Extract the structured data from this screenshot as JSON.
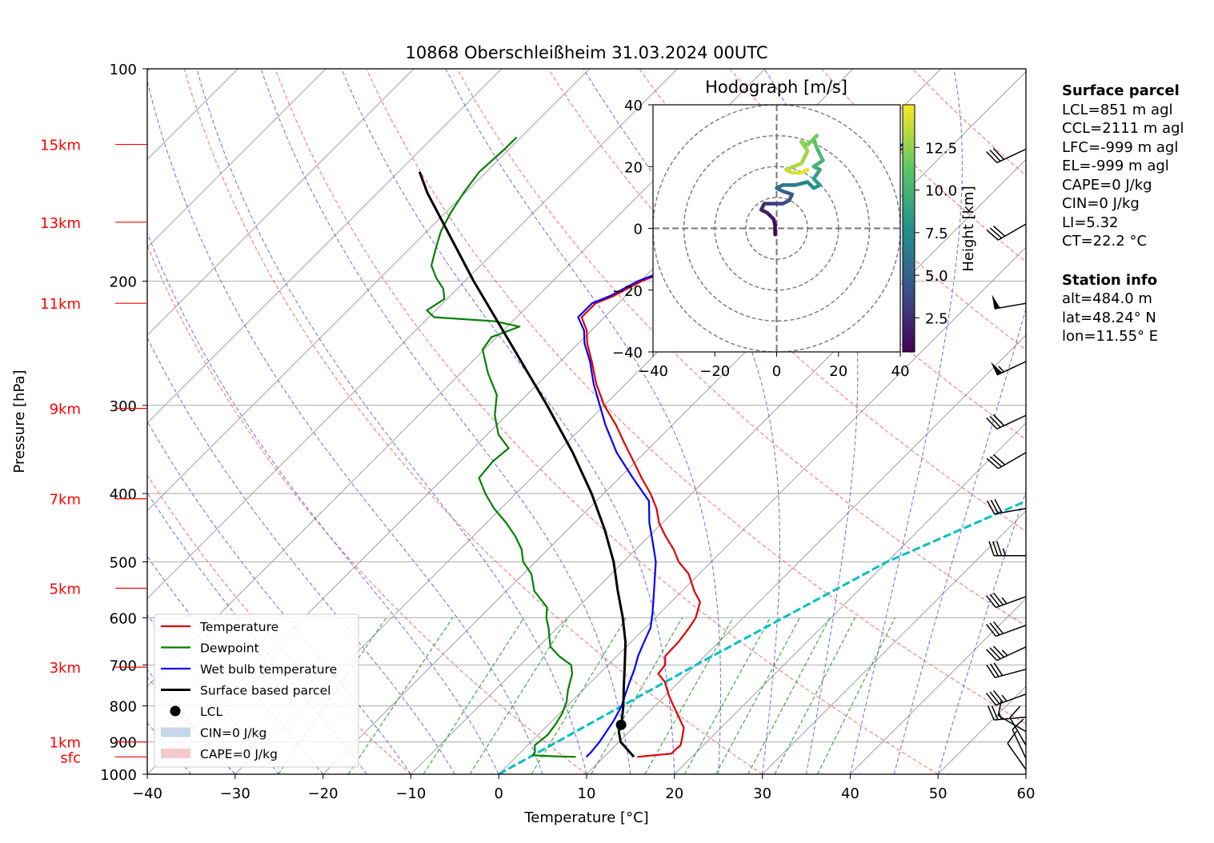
{
  "chart_data": {
    "type": "line",
    "title": "10868 Oberschleißheim 31.03.2024 00UTC",
    "xlabel": "Temperature [°C]",
    "ylabel": "Pressure [hPa]",
    "xlim": [
      -40,
      60
    ],
    "ylim": [
      1000,
      100
    ],
    "y_scale": "log",
    "x_ticks": [
      -40,
      -30,
      -20,
      -10,
      0,
      10,
      20,
      30,
      40,
      50,
      60
    ],
    "y_ticks": [
      100,
      200,
      300,
      400,
      500,
      600,
      700,
      800,
      900,
      1000
    ],
    "height_labels": [
      {
        "label": "15km",
        "p": 128
      },
      {
        "label": "13km",
        "p": 165
      },
      {
        "label": "11km",
        "p": 215
      },
      {
        "label": "9km",
        "p": 303
      },
      {
        "label": "7km",
        "p": 407
      },
      {
        "label": "5km",
        "p": 545
      },
      {
        "label": "3km",
        "p": 705
      },
      {
        "label": "1km",
        "p": 900
      },
      {
        "label": "sfc",
        "p": 945
      }
    ],
    "grid": true,
    "legend_position": "lower-left",
    "legend": [
      {
        "label": "Temperature",
        "color": "#e00000",
        "kind": "line"
      },
      {
        "label": "Dewpoint",
        "color": "#008000",
        "kind": "line"
      },
      {
        "label": "Wet bulb temperature",
        "color": "#0000ff",
        "kind": "line"
      },
      {
        "label": "Surface based parcel",
        "color": "#000000",
        "kind": "thickline"
      },
      {
        "label": "LCL",
        "color": "#000000",
        "kind": "dot"
      },
      {
        "label": "CIN=0 J/kg",
        "color": "#c6d8e8",
        "kind": "patch"
      },
      {
        "label": "CAPE=0 J/kg",
        "color": "#f5c9cb",
        "kind": "patch"
      }
    ],
    "series": [
      {
        "name": "Temperature",
        "color": "#e00000",
        "points": [
          [
            945,
            13.8
          ],
          [
            940,
            15.5
          ],
          [
            935,
            17.3
          ],
          [
            925,
            17.3
          ],
          [
            910,
            17.4
          ],
          [
            890,
            16.8
          ],
          [
            860,
            15.8
          ],
          [
            840,
            14.6
          ],
          [
            820,
            13.4
          ],
          [
            800,
            12.1
          ],
          [
            770,
            10.2
          ],
          [
            740,
            8.4
          ],
          [
            720,
            6.7
          ],
          [
            700,
            6.5
          ],
          [
            680,
            5.5
          ],
          [
            650,
            5.4
          ],
          [
            620,
            5.0
          ],
          [
            600,
            4.6
          ],
          [
            570,
            3.3
          ],
          [
            550,
            1.4
          ],
          [
            520,
            -1.2
          ],
          [
            500,
            -3.7
          ],
          [
            480,
            -5.7
          ],
          [
            460,
            -8.1
          ],
          [
            440,
            -10.4
          ],
          [
            420,
            -12.3
          ],
          [
            400,
            -14.7
          ],
          [
            380,
            -17.5
          ],
          [
            360,
            -20.3
          ],
          [
            340,
            -23.3
          ],
          [
            320,
            -26.4
          ],
          [
            300,
            -30.0
          ],
          [
            280,
            -33.3
          ],
          [
            260,
            -36.4
          ],
          [
            245,
            -39.0
          ],
          [
            235,
            -40.5
          ],
          [
            225,
            -42.6
          ],
          [
            215,
            -42.6
          ],
          [
            210,
            -41.4
          ],
          [
            200,
            -39.9
          ],
          [
            195,
            -38.5
          ],
          [
            190,
            -37.9
          ],
          [
            185,
            -36.0
          ],
          [
            180,
            -33.0
          ],
          [
            175,
            -31.5
          ],
          [
            170,
            -31.7
          ],
          [
            160,
            -31.9
          ],
          [
            150,
            -32.5
          ],
          [
            145,
            -31.5
          ],
          [
            140,
            -29.5
          ],
          [
            135,
            -26.2
          ],
          [
            130,
            -25.3
          ],
          [
            125,
            -25.3
          ]
        ]
      },
      {
        "name": "Dewpoint",
        "color": "#008000",
        "points": [
          [
            945,
            6.8
          ],
          [
            943,
            4.0
          ],
          [
            940,
            1.7
          ],
          [
            930,
            1.6
          ],
          [
            910,
            0.8
          ],
          [
            880,
            1.1
          ],
          [
            850,
            0.8
          ],
          [
            820,
            0.3
          ],
          [
            790,
            -0.5
          ],
          [
            760,
            -1.7
          ],
          [
            720,
            -3.1
          ],
          [
            700,
            -4.2
          ],
          [
            680,
            -6.6
          ],
          [
            660,
            -8.6
          ],
          [
            640,
            -9.8
          ],
          [
            620,
            -11.0
          ],
          [
            600,
            -12.4
          ],
          [
            580,
            -13.5
          ],
          [
            550,
            -16.8
          ],
          [
            520,
            -19.1
          ],
          [
            500,
            -21.4
          ],
          [
            480,
            -23.0
          ],
          [
            460,
            -25.2
          ],
          [
            440,
            -27.8
          ],
          [
            420,
            -30.8
          ],
          [
            400,
            -33.5
          ],
          [
            380,
            -36.0
          ],
          [
            360,
            -36.3
          ],
          [
            345,
            -36.0
          ],
          [
            330,
            -38.7
          ],
          [
            310,
            -41.3
          ],
          [
            290,
            -43.4
          ],
          [
            270,
            -46.9
          ],
          [
            250,
            -50.2
          ],
          [
            240,
            -50.6
          ],
          [
            232,
            -48.6
          ],
          [
            228,
            -52.0
          ],
          [
            225,
            -59.4
          ],
          [
            220,
            -61.0
          ],
          [
            212,
            -60.3
          ],
          [
            205,
            -61.6
          ],
          [
            198,
            -63.6
          ],
          [
            190,
            -65.6
          ],
          [
            180,
            -67.0
          ],
          [
            170,
            -68.4
          ],
          [
            160,
            -69.4
          ],
          [
            150,
            -70.2
          ],
          [
            140,
            -70.8
          ],
          [
            130,
            -70.5
          ],
          [
            125,
            -70.5
          ]
        ]
      },
      {
        "name": "Wet bulb temperature",
        "color": "#0000ff",
        "points": [
          [
            945,
            8.0
          ],
          [
            930,
            8.0
          ],
          [
            900,
            7.8
          ],
          [
            870,
            7.4
          ],
          [
            840,
            7.0
          ],
          [
            800,
            6.2
          ],
          [
            770,
            5.3
          ],
          [
            740,
            4.4
          ],
          [
            710,
            3.5
          ],
          [
            680,
            2.4
          ],
          [
            650,
            1.5
          ],
          [
            620,
            0.6
          ],
          [
            590,
            -0.9
          ],
          [
            560,
            -2.6
          ],
          [
            530,
            -4.4
          ],
          [
            500,
            -6.3
          ],
          [
            470,
            -8.8
          ],
          [
            440,
            -11.5
          ],
          [
            410,
            -14.0
          ],
          [
            380,
            -18.5
          ],
          [
            350,
            -23.2
          ],
          [
            320,
            -27.6
          ],
          [
            300,
            -30.5
          ],
          [
            280,
            -33.6
          ],
          [
            260,
            -36.6
          ],
          [
            245,
            -39.3
          ],
          [
            235,
            -40.8
          ],
          [
            225,
            -43.0
          ],
          [
            215,
            -43.0
          ],
          [
            210,
            -41.8
          ],
          [
            200,
            -40.3
          ],
          [
            195,
            -38.9
          ],
          [
            190,
            -38.3
          ],
          [
            185,
            -36.4
          ],
          [
            180,
            -33.5
          ],
          [
            175,
            -32.0
          ],
          [
            170,
            -32.2
          ],
          [
            160,
            -32.4
          ],
          [
            150,
            -33.0
          ],
          [
            145,
            -32.0
          ],
          [
            140,
            -30.0
          ],
          [
            135,
            -26.7
          ],
          [
            130,
            -25.8
          ],
          [
            125,
            -25.8
          ]
        ]
      },
      {
        "name": "Surface based parcel",
        "color": "#000000",
        "points": [
          [
            945,
            13.4
          ],
          [
            900,
            10.2
          ],
          [
            870,
            8.8
          ],
          [
            850,
            8.3
          ],
          [
            800,
            6.4
          ],
          [
            750,
            4.2
          ],
          [
            700,
            1.9
          ],
          [
            650,
            -0.6
          ],
          [
            600,
            -3.7
          ],
          [
            550,
            -7.3
          ],
          [
            500,
            -11.1
          ],
          [
            450,
            -15.8
          ],
          [
            400,
            -21.4
          ],
          [
            350,
            -28.2
          ],
          [
            300,
            -36.5
          ],
          [
            250,
            -46.6
          ],
          [
            200,
            -59.0
          ],
          [
            150,
            -74.3
          ],
          [
            140,
            -77.6
          ]
        ]
      }
    ],
    "lcl": {
      "pressure": 851,
      "temperature": 8.3
    },
    "reference_line": {
      "color": "#00c0c0",
      "points": [
        [
          1000,
          0
        ],
        [
          700,
          10
        ],
        [
          500,
          20
        ],
        [
          400,
          30
        ],
        [
          300,
          50
        ]
      ]
    },
    "wind_barbs": [
      {
        "p": 130,
        "dir": 245,
        "speed": 30
      },
      {
        "p": 166,
        "dir": 240,
        "speed": 30
      },
      {
        "p": 215,
        "dir": 260,
        "speed": 50
      },
      {
        "p": 260,
        "dir": 245,
        "speed": 55
      },
      {
        "p": 310,
        "dir": 245,
        "speed": 30
      },
      {
        "p": 350,
        "dir": 240,
        "speed": 30
      },
      {
        "p": 420,
        "dir": 260,
        "speed": 30
      },
      {
        "p": 490,
        "dir": 270,
        "speed": 35
      },
      {
        "p": 560,
        "dir": 250,
        "speed": 35
      },
      {
        "p": 615,
        "dir": 250,
        "speed": 30
      },
      {
        "p": 660,
        "dir": 245,
        "speed": 35
      },
      {
        "p": 710,
        "dir": 255,
        "speed": 30
      },
      {
        "p": 770,
        "dir": 250,
        "speed": 35
      },
      {
        "p": 830,
        "dir": 265,
        "speed": 25
      },
      {
        "p": 870,
        "dir": 300,
        "speed": 10
      },
      {
        "p": 910,
        "dir": 330,
        "speed": 10
      },
      {
        "p": 950,
        "dir": 335,
        "speed": 10
      },
      {
        "p": 985,
        "dir": 325,
        "speed": 10
      }
    ],
    "hodograph": {
      "title": "Hodograph [m/s]",
      "xlim": [
        -40,
        40
      ],
      "ylim": [
        -40,
        40
      ],
      "ticks": [
        -40,
        -20,
        0,
        20,
        40
      ],
      "rings": [
        10,
        20,
        30,
        40
      ],
      "colorbar_label": "Height [km]",
      "colorbar_ticks": [
        2.5,
        5.0,
        7.5,
        10.0,
        12.5
      ],
      "colorbar_range": [
        0.5,
        15
      ],
      "points": [
        [
          -0.5,
          -2,
          0.5
        ],
        [
          -0.5,
          1,
          0.8
        ],
        [
          -1,
          3,
          1.1
        ],
        [
          -3,
          5,
          1.5
        ],
        [
          -5,
          6,
          2.0
        ],
        [
          -4,
          8,
          2.4
        ],
        [
          -2,
          8,
          2.8
        ],
        [
          0,
          8,
          3.2
        ],
        [
          2,
          8,
          3.6
        ],
        [
          4,
          9,
          4.0
        ],
        [
          5,
          11,
          4.5
        ],
        [
          2,
          12,
          5.0
        ],
        [
          0,
          13,
          5.5
        ],
        [
          2,
          14,
          6.0
        ],
        [
          6,
          14,
          6.5
        ],
        [
          10,
          15,
          7.0
        ],
        [
          12,
          13,
          7.5
        ],
        [
          14,
          14,
          8.0
        ],
        [
          12,
          16,
          8.5
        ],
        [
          14,
          19,
          9.0
        ],
        [
          12,
          20,
          9.5
        ],
        [
          15,
          22,
          10.0
        ],
        [
          13,
          26,
          10.6
        ],
        [
          12,
          29,
          11.2
        ],
        [
          13,
          30,
          11.6
        ],
        [
          10,
          27,
          12.0
        ],
        [
          8,
          28,
          12.3
        ],
        [
          10,
          25,
          12.7
        ],
        [
          8,
          21,
          13.0
        ],
        [
          3,
          19,
          13.5
        ],
        [
          5,
          18,
          14.0
        ],
        [
          8,
          18,
          14.4
        ],
        [
          10,
          19,
          14.8
        ]
      ]
    }
  },
  "info_panel": {
    "surface_title": "Surface parcel",
    "surface_lines": [
      "LCL=851 m agl",
      "CCL=2111 m agl",
      "LFC=-999 m agl",
      "EL=-999 m agl",
      "CAPE=0 J/kg",
      "CIN=0 J/kg",
      "LI=5.32",
      "CT=22.2 °C"
    ],
    "station_title": "Station info",
    "station_lines": [
      "alt=484.0 m",
      "lat=48.24° N",
      "lon=11.55° E"
    ]
  },
  "colors": {
    "temperature": "#e00000",
    "dewpoint": "#008000",
    "wetbulb": "#0000ff",
    "parcel": "#000000",
    "dry_adiabat": "#ee5a5a",
    "moist_adiabat": "#5555e8",
    "mixing_ratio": "#1a8c1a",
    "isotherm": "#a0a0a0",
    "height_label": "#ff0000",
    "reference_line": "#00c0c0"
  }
}
